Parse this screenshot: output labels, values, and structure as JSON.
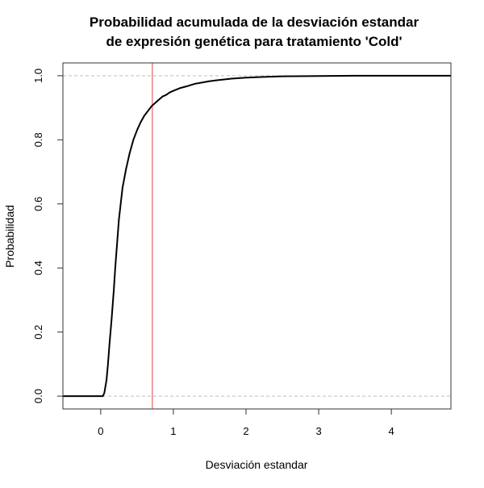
{
  "chart_data": {
    "type": "line",
    "title_lines": [
      "Probabilidad acumulada de la desviación estandar",
      "de expresión genética para tratamiento 'Cold'"
    ],
    "xlabel": "Desviación estandar",
    "ylabel": "Probabilidad",
    "xlim": [
      -0.52,
      4.82
    ],
    "ylim": [
      -0.04,
      1.04
    ],
    "x_ticks": [
      0,
      1,
      2,
      3,
      4
    ],
    "y_ticks": [
      0.0,
      0.2,
      0.4,
      0.6,
      0.8,
      1.0
    ],
    "x_tick_labels": [
      "0",
      "1",
      "2",
      "3",
      "4"
    ],
    "y_tick_labels": [
      "0.0",
      "0.2",
      "0.4",
      "0.6",
      "0.8",
      "1.0"
    ],
    "reference_lines_y": [
      0,
      1
    ],
    "reference_line_color": "#bfbfbf",
    "vertical_line_x": 0.71,
    "vertical_line_color": "#f08080",
    "series": [
      {
        "color": "#000000",
        "x": [
          -0.52,
          0.03,
          0.05,
          0.08,
          0.1,
          0.12,
          0.15,
          0.18,
          0.2,
          0.23,
          0.25,
          0.28,
          0.3,
          0.35,
          0.4,
          0.45,
          0.5,
          0.55,
          0.6,
          0.65,
          0.7,
          0.75,
          0.8,
          0.85,
          0.9,
          0.95,
          1.0,
          1.1,
          1.2,
          1.3,
          1.4,
          1.5,
          1.6,
          1.8,
          2.0,
          2.2,
          2.5,
          3.0,
          3.5,
          4.0,
          4.82
        ],
        "y": [
          0.0,
          0.0,
          0.01,
          0.05,
          0.1,
          0.16,
          0.24,
          0.33,
          0.4,
          0.49,
          0.55,
          0.61,
          0.65,
          0.71,
          0.76,
          0.8,
          0.83,
          0.855,
          0.875,
          0.89,
          0.905,
          0.915,
          0.925,
          0.935,
          0.94,
          0.948,
          0.953,
          0.962,
          0.968,
          0.975,
          0.979,
          0.983,
          0.986,
          0.991,
          0.994,
          0.996,
          0.998,
          0.999,
          1.0,
          1.0,
          1.0
        ]
      }
    ]
  }
}
